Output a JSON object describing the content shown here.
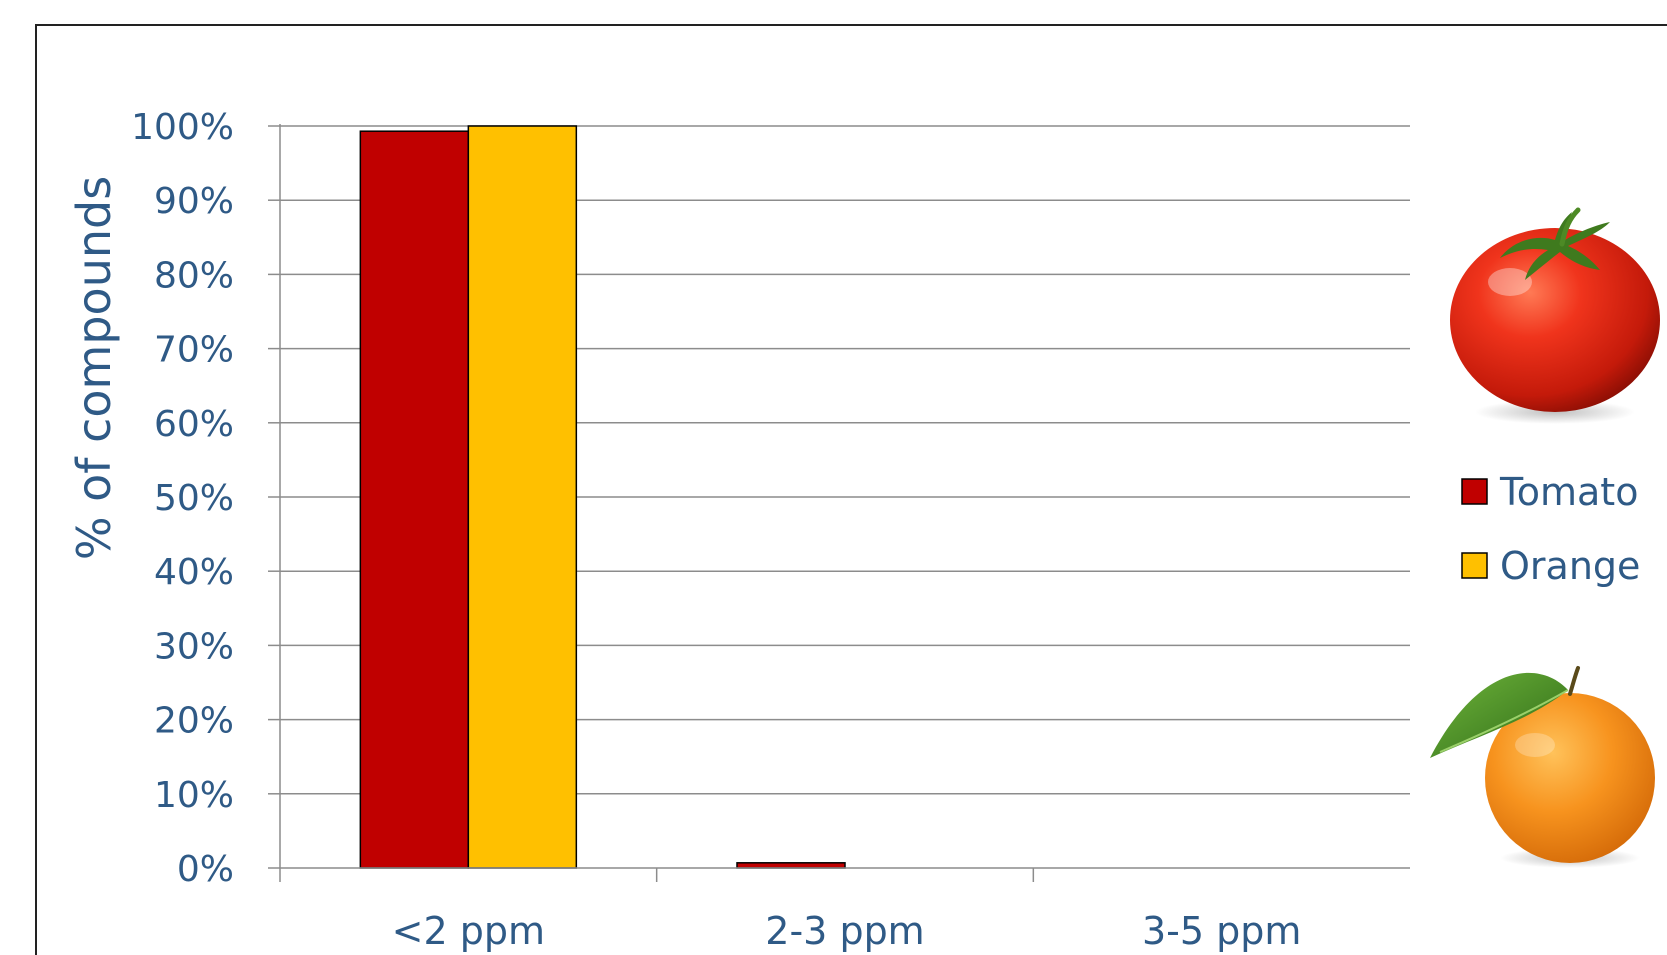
{
  "chart_data": {
    "type": "bar",
    "categories": [
      "<2 ppm",
      "2-3 ppm",
      "3-5 ppm"
    ],
    "series": [
      {
        "name": "Tomato",
        "values": [
          99.3,
          0.7,
          0
        ],
        "color": "#c00000"
      },
      {
        "name": "Orange",
        "values": [
          100,
          0,
          0
        ],
        "color": "#ffc000"
      }
    ],
    "title": "",
    "xlabel": "",
    "ylabel": "% of compounds",
    "ylim": [
      0,
      100
    ],
    "yticks": [
      "0%",
      "10%",
      "20%",
      "30%",
      "40%",
      "50%",
      "60%",
      "70%",
      "80%",
      "90%",
      "100%"
    ],
    "grid": true,
    "legend_position": "right"
  },
  "illustrations": {
    "top": "tomato-image",
    "bottom": "orange-image"
  }
}
